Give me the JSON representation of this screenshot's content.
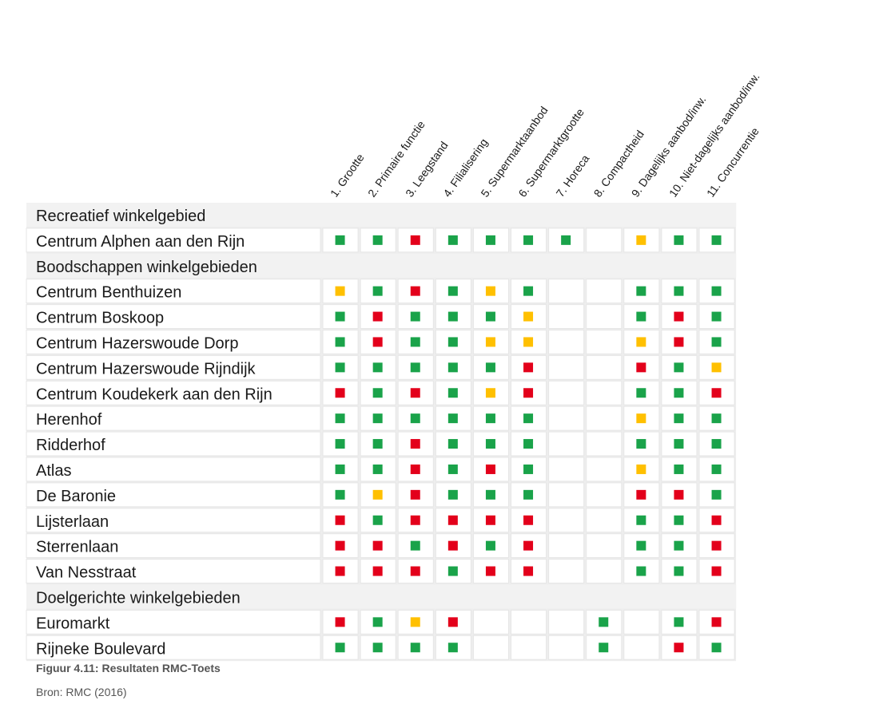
{
  "chart_data": {
    "type": "table",
    "columns": [
      "1. Grootte",
      "2. Primaire functie",
      "3. Leegstand",
      "4. Filialisering",
      "5. Supermarktaanbod",
      "6. Supermarktgrootte",
      "7. Horeca",
      "8. Compactheid",
      "9. Dagelijks aanbod/inw.",
      "10. Niet-dagelijks aanbod/inw.",
      "11. Concurrentie"
    ],
    "sections": [
      {
        "title": "Recreatief winkelgebied",
        "rows": [
          {
            "name": "Centrum Alphen aan den Rijn",
            "values": [
              "G",
              "G",
              "R",
              "G",
              "G",
              "G",
              "G",
              "",
              "Y",
              "G",
              "G"
            ]
          }
        ]
      },
      {
        "title": "Boodschappen winkelgebieden",
        "rows": [
          {
            "name": "Centrum Benthuizen",
            "values": [
              "Y",
              "G",
              "R",
              "G",
              "Y",
              "G",
              "",
              "",
              "G",
              "G",
              "G"
            ]
          },
          {
            "name": "Centrum Boskoop",
            "values": [
              "G",
              "R",
              "G",
              "G",
              "G",
              "Y",
              "",
              "",
              "G",
              "R",
              "G"
            ]
          },
          {
            "name": "Centrum Hazerswoude Dorp",
            "values": [
              "G",
              "R",
              "G",
              "G",
              "Y",
              "Y",
              "",
              "",
              "Y",
              "R",
              "G"
            ]
          },
          {
            "name": "Centrum Hazerswoude Rijndijk",
            "values": [
              "G",
              "G",
              "G",
              "G",
              "G",
              "R",
              "",
              "",
              "R",
              "G",
              "Y"
            ]
          },
          {
            "name": "Centrum Koudekerk aan den Rijn",
            "values": [
              "R",
              "G",
              "R",
              "G",
              "Y",
              "R",
              "",
              "",
              "G",
              "G",
              "R"
            ]
          },
          {
            "name": "Herenhof",
            "values": [
              "G",
              "G",
              "G",
              "G",
              "G",
              "G",
              "",
              "",
              "Y",
              "G",
              "G"
            ]
          },
          {
            "name": "Ridderhof",
            "values": [
              "G",
              "G",
              "R",
              "G",
              "G",
              "G",
              "",
              "",
              "G",
              "G",
              "G"
            ]
          },
          {
            "name": "Atlas",
            "values": [
              "G",
              "G",
              "R",
              "G",
              "R",
              "G",
              "",
              "",
              "Y",
              "G",
              "G"
            ]
          },
          {
            "name": "De Baronie",
            "values": [
              "G",
              "Y",
              "R",
              "G",
              "G",
              "G",
              "",
              "",
              "R",
              "R",
              "G"
            ]
          },
          {
            "name": "Lijsterlaan",
            "values": [
              "R",
              "G",
              "R",
              "R",
              "R",
              "R",
              "",
              "",
              "G",
              "G",
              "R"
            ]
          },
          {
            "name": "Sterrenlaan",
            "values": [
              "R",
              "R",
              "G",
              "R",
              "G",
              "R",
              "",
              "",
              "G",
              "G",
              "R"
            ]
          },
          {
            "name": "Van Nesstraat",
            "values": [
              "R",
              "R",
              "R",
              "G",
              "R",
              "R",
              "",
              "",
              "G",
              "G",
              "R"
            ]
          }
        ]
      },
      {
        "title": "Doelgerichte winkelgebieden",
        "rows": [
          {
            "name": "Euromarkt",
            "values": [
              "R",
              "G",
              "Y",
              "R",
              "",
              "",
              "",
              "G",
              "",
              "G",
              "R"
            ]
          },
          {
            "name": "Rijneke Boulevard",
            "values": [
              "G",
              "G",
              "G",
              "G",
              "",
              "",
              "",
              "G",
              "",
              "R",
              "G"
            ]
          }
        ]
      }
    ],
    "colors": {
      "G": "#1aa34a",
      "Y": "#ffc000",
      "R": "#e3001b"
    }
  },
  "caption": "Figuur 4.11: Resultaten RMC-Toets",
  "source": "Bron: RMC (2016)"
}
